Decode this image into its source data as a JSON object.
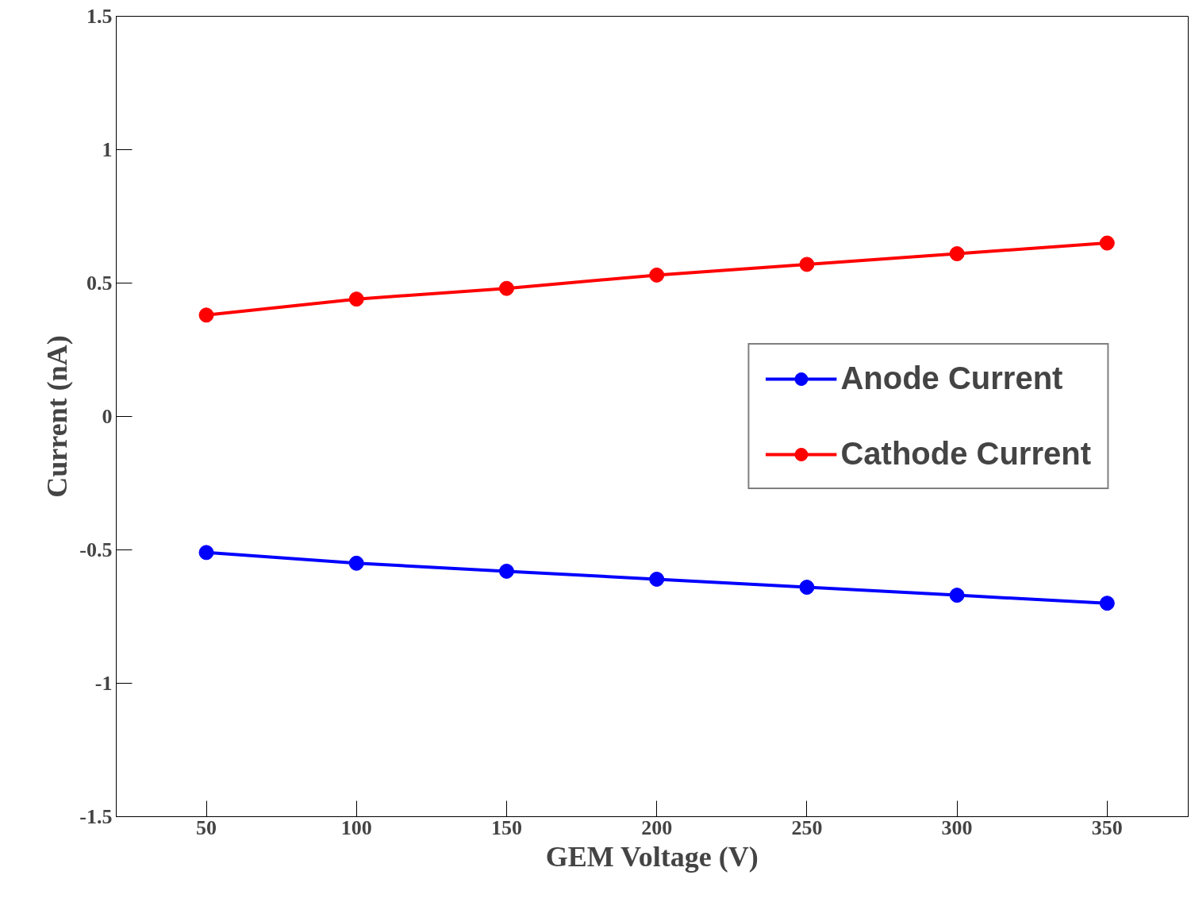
{
  "chart_data": {
    "type": "line",
    "xlabel": "GEM Voltage (V)",
    "ylabel": "Current (nA)",
    "x": [
      50,
      100,
      150,
      200,
      250,
      300,
      350
    ],
    "series": [
      {
        "name": "Anode Current",
        "color": "#0000ff",
        "values": [
          -0.51,
          -0.55,
          -0.58,
          -0.61,
          -0.64,
          -0.67,
          -0.7
        ]
      },
      {
        "name": "Cathode Current",
        "color": "#ff0000",
        "values": [
          0.38,
          0.44,
          0.48,
          0.53,
          0.57,
          0.61,
          0.65
        ]
      }
    ],
    "xlim": [
      20,
      377
    ],
    "ylim": [
      -1.5,
      1.5
    ],
    "xticks": [
      50,
      100,
      150,
      200,
      250,
      300,
      350
    ],
    "yticks": [
      -1.5,
      -1,
      -0.5,
      0,
      0.5,
      1,
      1.5
    ],
    "marker": "circle",
    "line_style": "solid",
    "grid": false,
    "legend": "right"
  }
}
